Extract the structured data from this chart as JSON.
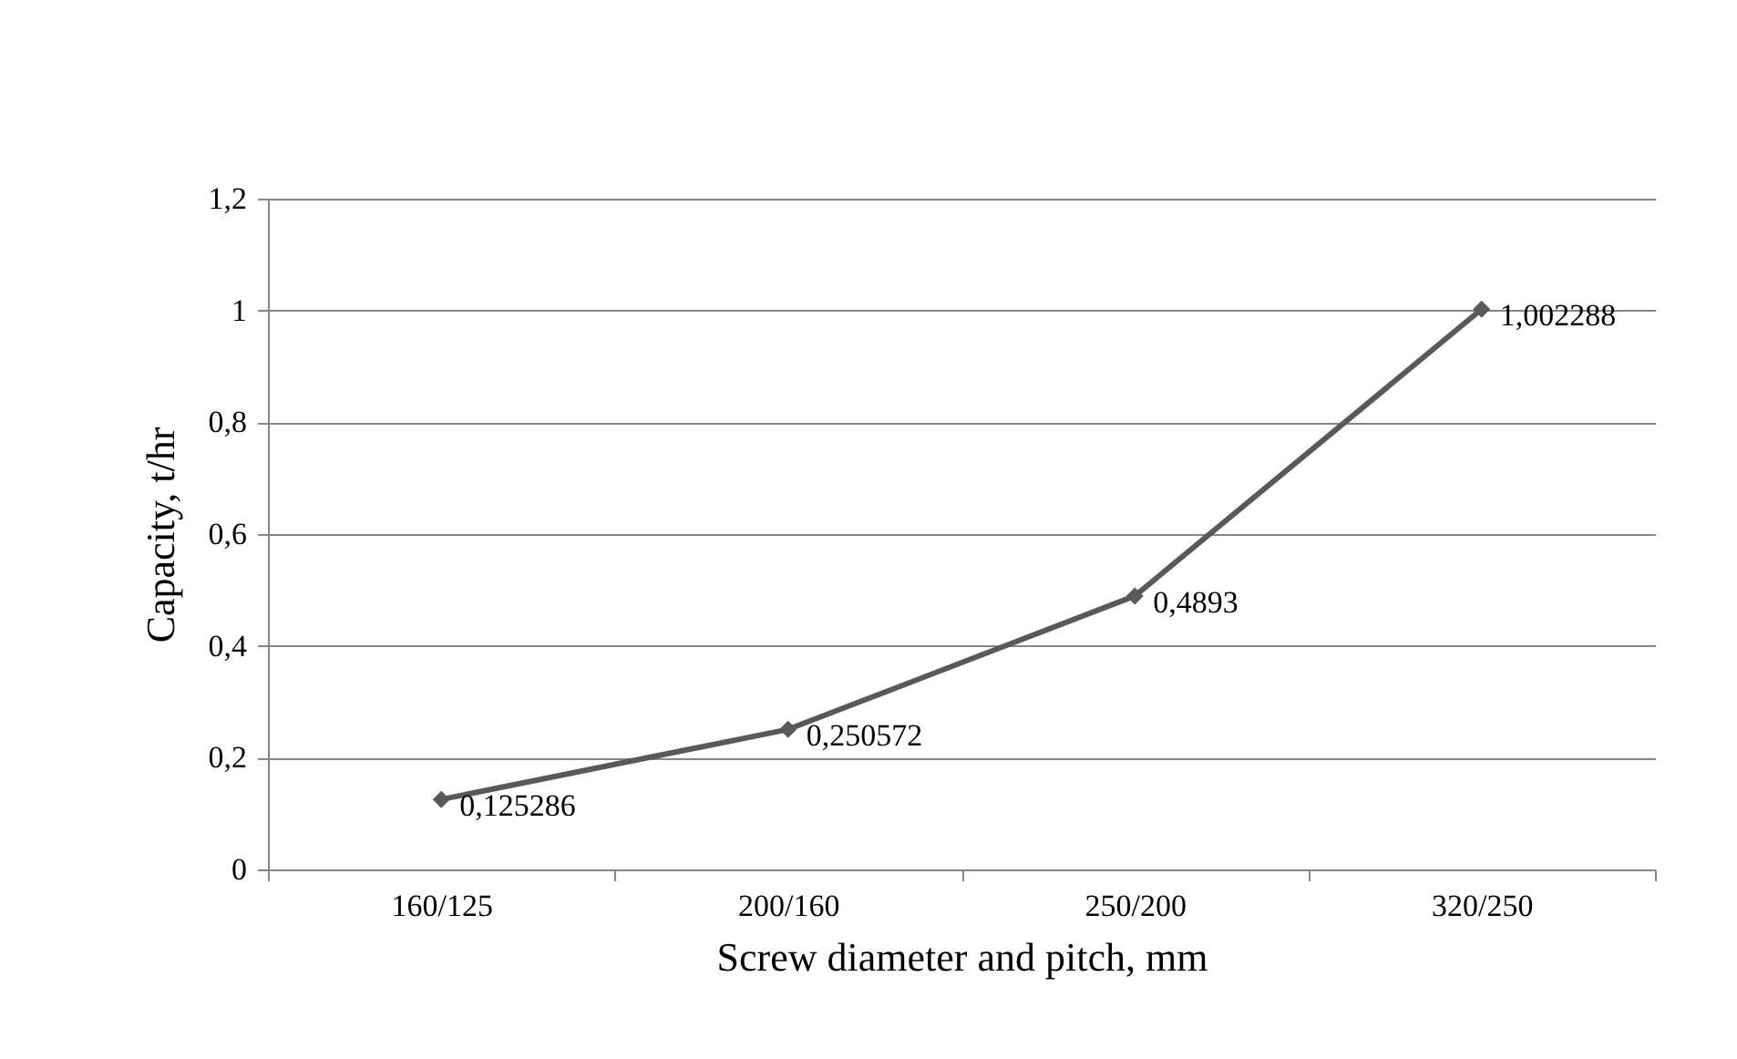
{
  "chart_data": {
    "type": "line",
    "xlabel": "Screw diameter and pitch, mm",
    "ylabel": "Capacity, t/hr",
    "categories": [
      "160/125",
      "200/160",
      "250/200",
      "320/250"
    ],
    "series": [
      {
        "color": "#595959",
        "values": [
          0.125286,
          0.250572,
          0.4893,
          1.002288
        ],
        "value_labels": [
          "0,125286",
          "0,250572",
          "0,4893",
          "1,002288"
        ]
      }
    ],
    "ylim": [
      0,
      1.2
    ],
    "yticks": [
      0,
      {
        "value": 0.2,
        "label": "0,2"
      },
      {
        "value": 0.4,
        "label": "0,4"
      },
      {
        "value": 0.6,
        "label": "0,6"
      },
      {
        "value": 0.8,
        "label": "0,8"
      },
      1,
      {
        "value": 1.2,
        "label": "1,2"
      }
    ],
    "grid": "y",
    "marker": "diamond",
    "legend": false
  }
}
